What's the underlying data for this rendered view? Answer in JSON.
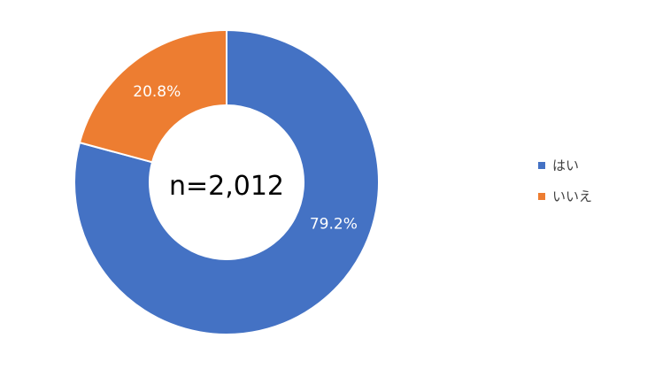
{
  "chart_data": {
    "type": "pie",
    "donut": true,
    "center_label": "n=2,012",
    "legend_position": "right",
    "slices": [
      {
        "name": "はい",
        "value": 79.2,
        "label": "79.2%",
        "color": "#4472C4"
      },
      {
        "name": "いいえ",
        "value": 20.8,
        "label": "20.8%",
        "color": "#ED7D31"
      }
    ]
  }
}
